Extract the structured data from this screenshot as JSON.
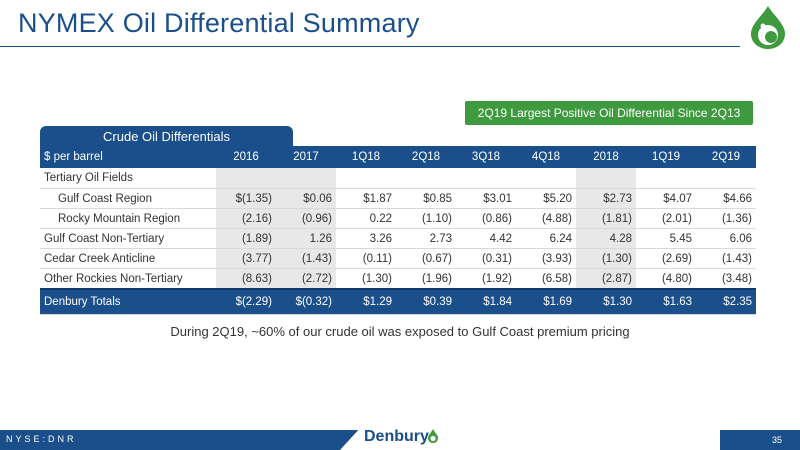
{
  "header": {
    "title": "NYMEX Oil Differential Summary"
  },
  "callout": {
    "text": "2Q19 Largest Positive Oil Differential Since 2Q13"
  },
  "table": {
    "tab_label": "Crude Oil Differentials",
    "columns": [
      "$ per barrel",
      "2016",
      "2017",
      "1Q18",
      "2Q18",
      "3Q18",
      "4Q18",
      "2018",
      "1Q19",
      "2Q19"
    ],
    "section_label": "Tertiary Oil Fields",
    "rows": [
      {
        "label": "Gulf Coast Region",
        "values": [
          "$(1.35)",
          "$0.06",
          "$1.87",
          "$0.85",
          "$3.01",
          "$5.20",
          "$2.73",
          "$4.07",
          "$4.66"
        ]
      },
      {
        "label": "Rocky Mountain Region",
        "values": [
          "(2.16)",
          "(0.96)",
          "0.22",
          "(1.10)",
          "(0.86)",
          "(4.88)",
          "(1.81)",
          "(2.01)",
          "(1.36)"
        ]
      },
      {
        "label": "Gulf Coast Non-Tertiary",
        "values": [
          "(1.89)",
          "1.26",
          "3.26",
          "2.73",
          "4.42",
          "6.24",
          "4.28",
          "5.45",
          "6.06"
        ]
      },
      {
        "label": "Cedar Creek Anticline",
        "values": [
          "(3.77)",
          "(1.43)",
          "(0.11)",
          "(0.67)",
          "(0.31)",
          "(3.93)",
          "(1.30)",
          "(2.69)",
          "(1.43)"
        ]
      },
      {
        "label": "Other Rockies Non-Tertiary",
        "values": [
          "(8.63)",
          "(2.72)",
          "(1.30)",
          "(1.96)",
          "(1.92)",
          "(6.58)",
          "(2.87)",
          "(4.80)",
          "(3.48)"
        ]
      }
    ],
    "totals": {
      "label": "Denbury Totals",
      "values": [
        "$(2.29)",
        "$(0.32)",
        "$1.29",
        "$0.39",
        "$1.84",
        "$1.69",
        "$1.30",
        "$1.63",
        "$2.35"
      ]
    }
  },
  "note": {
    "text": "During 2Q19, ~60% of our crude oil was exposed to Gulf Coast premium pricing"
  },
  "footer": {
    "ticker": "NYSE:DNR",
    "brand": "Denbury",
    "page_number": "35"
  },
  "colors": {
    "brand_blue": "#1b4f8c",
    "accent_green": "#3f9a3f",
    "shade_gray": "#e8e8e8"
  },
  "icons": {
    "logo": "oil-drop-logo-icon"
  }
}
